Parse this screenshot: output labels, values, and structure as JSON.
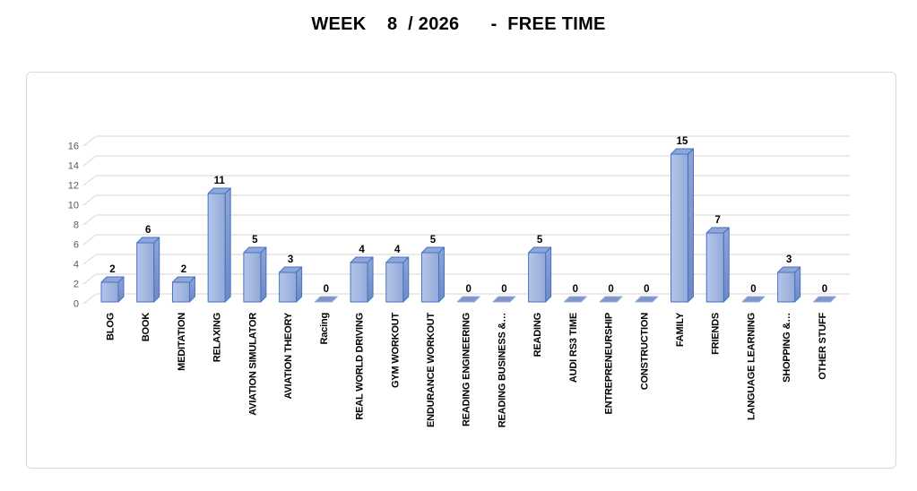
{
  "title": "WEEK    8  / 2026      -  FREE TIME",
  "chart_data": {
    "type": "bar",
    "style": "3d-column",
    "title": "WEEK 8 / 2026 - FREE TIME",
    "categories": [
      "BLOG",
      "BOOK",
      "MEDITATION",
      "RELAXING",
      "AVIATION SIMULATOR",
      "AVIATION THEORY",
      "Racing",
      "REAL WORLD DRIVING",
      "GYM WORKOUT",
      "ENDURANCE WORKOUT",
      "READING ENGINEERING",
      "READING BUSINESS &…",
      "READING",
      "AUDI RS3 TIME",
      "ENTREPRENEURSHIP",
      "CONSTRUCTION",
      "FAMILY",
      "FRIENDS",
      "LANGUAGE LEARNING",
      "SHOPPING &…",
      "OTHER STUFF"
    ],
    "values": [
      2,
      6,
      2,
      11,
      5,
      3,
      0,
      4,
      4,
      5,
      0,
      0,
      5,
      0,
      0,
      0,
      15,
      7,
      0,
      3,
      0
    ],
    "xlabel": "",
    "ylabel": "",
    "ylim": [
      0,
      16
    ],
    "yticks": [
      0,
      2,
      4,
      6,
      8,
      10,
      12,
      14,
      16
    ],
    "grid": true,
    "legend": false,
    "data_labels": true,
    "colors": {
      "bar_front_light": "#b5c5e9",
      "bar_front_dark": "#92aad9",
      "bar_side_light": "#8da5d6",
      "bar_side_dark": "#7089c3",
      "bar_top": "#8fa7d8",
      "bar_border": "#4472c4",
      "zero_fill": "#8196c6",
      "zero_border": "#94afe0",
      "gridline": "#d6d6d6",
      "tick_text": "#595959",
      "label_text": "#000000",
      "chart_border": "#d9d9d9",
      "background": "#ffffff"
    }
  }
}
